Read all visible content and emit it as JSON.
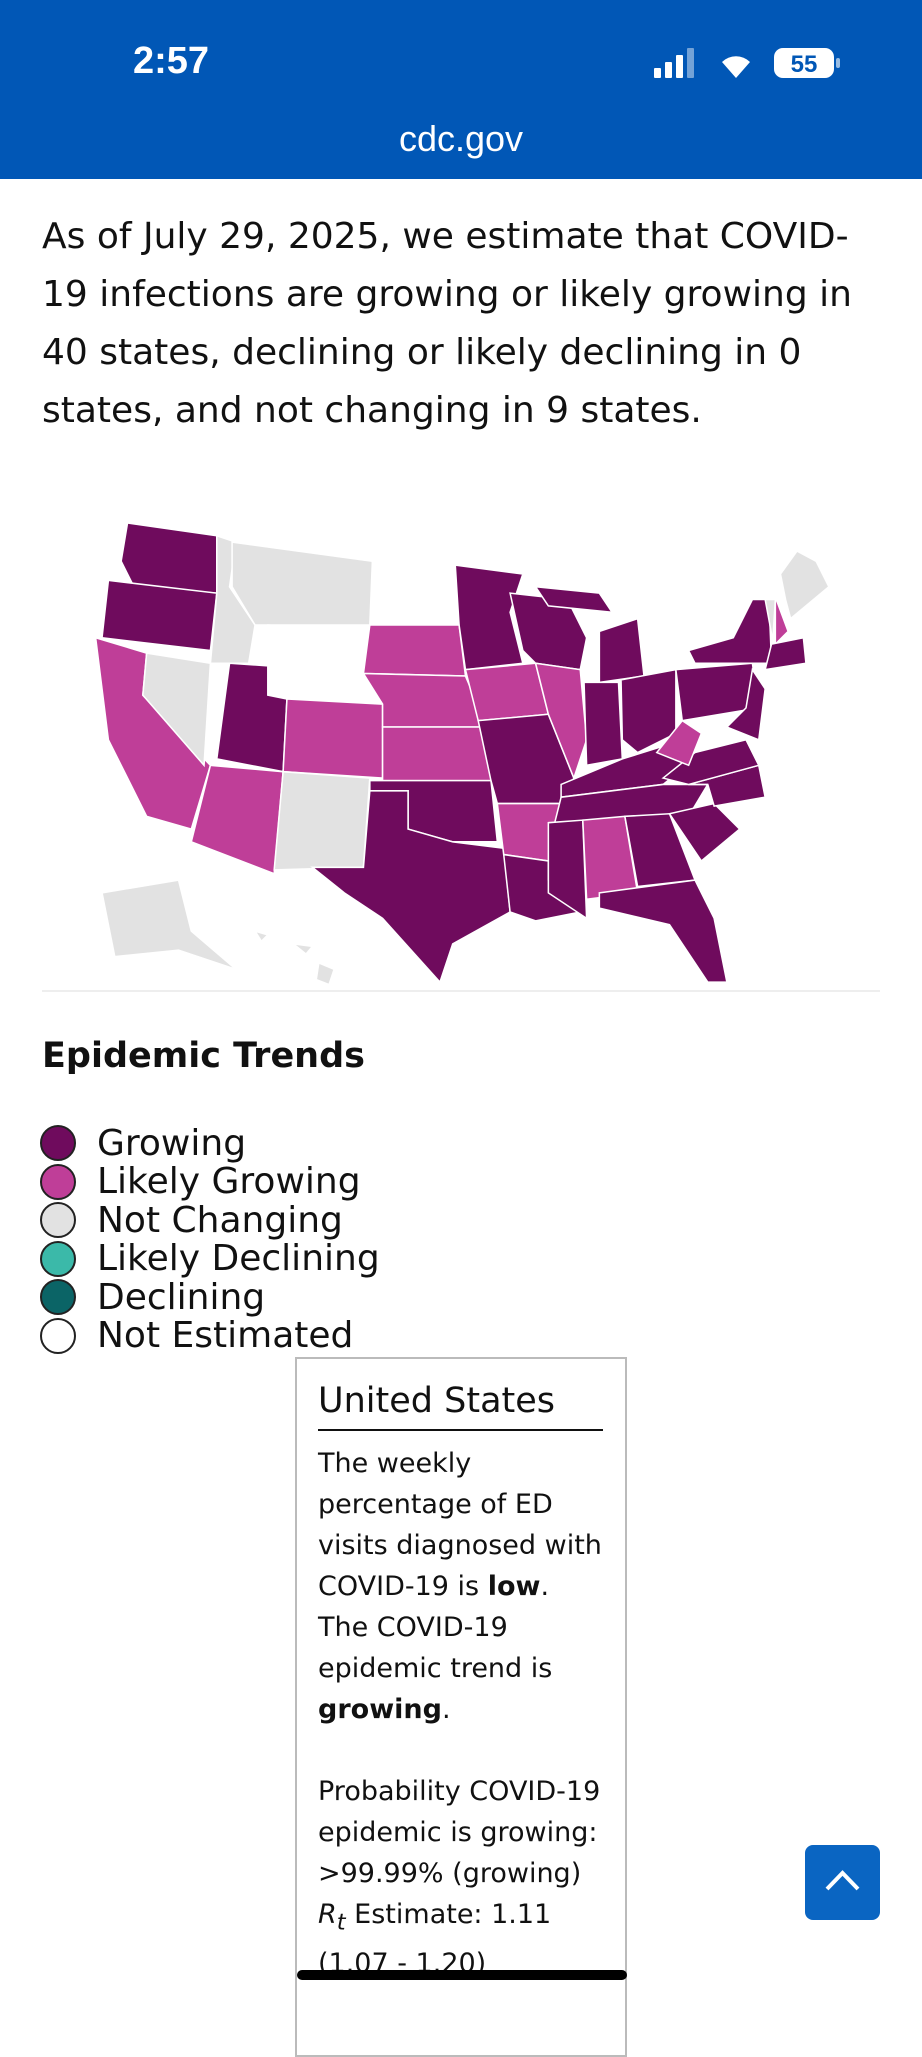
{
  "status_bar": {
    "time": "2:57",
    "battery": "55"
  },
  "url": "cdc.gov",
  "intro": "As of July 29, 2025, we estimate that COVID-19 infections are growing or likely growing in 40 states, declining or likely declining in 0 states, and not changing in 9 states.",
  "legend": {
    "title": "Epidemic Trends",
    "items": [
      {
        "label": "Growing",
        "color": "#6f0b5d"
      },
      {
        "label": "Likely Growing",
        "color": "#bf3e98"
      },
      {
        "label": "Not Changing",
        "color": "#e2e2e2"
      },
      {
        "label": "Likely Declining",
        "color": "#3bb9a9"
      },
      {
        "label": "Declining",
        "color": "#0b6466"
      },
      {
        "label": "Not Estimated",
        "color": "#ffffff"
      }
    ]
  },
  "tooltip": {
    "title": "United States",
    "paragraph1": [
      "The weekly percentage of ED visits diagnosed with COVID-19 is ",
      "low",
      ". The COVID-19 epidemic trend is ",
      "growing",
      "."
    ],
    "paragraph2": "Probability COVID-19 epidemic is growing: >99.99% (growing)",
    "rt": [
      "R",
      "t",
      " Estimate: 1.11"
    ],
    "interval": "(1.07 - 1.20)"
  }
}
